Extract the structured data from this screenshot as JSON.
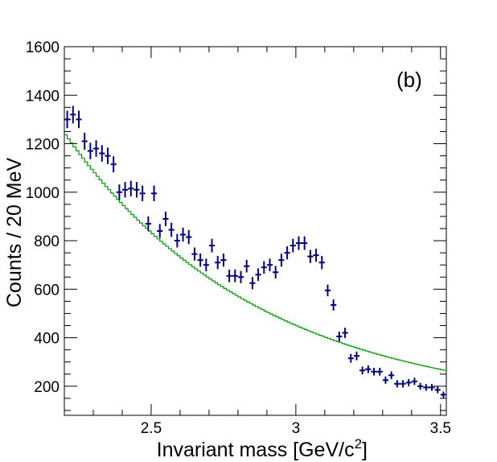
{
  "chart_data": {
    "type": "histogram-with-errorbars",
    "title": "",
    "panel_label": "(b)",
    "xlabel": "Invariant mass [GeV/c",
    "xlabel_sup": "2",
    "xlabel_close": "]",
    "ylabel": "Counts / 20 MeV",
    "xlim": [
      2.2,
      3.52
    ],
    "ylim": [
      80,
      1600
    ],
    "x_ticks": [
      {
        "value": 2.5,
        "label": "2.5"
      },
      {
        "value": 3.0,
        "label": "3"
      },
      {
        "value": 3.5,
        "label": "3.5"
      }
    ],
    "y_ticks": [
      {
        "value": 200,
        "label": "200"
      },
      {
        "value": 400,
        "label": "400"
      },
      {
        "value": 600,
        "label": "600"
      },
      {
        "value": 800,
        "label": "800"
      },
      {
        "value": 1000,
        "label": "1000"
      },
      {
        "value": 1200,
        "label": "1200"
      },
      {
        "value": 1400,
        "label": "1400"
      },
      {
        "value": 1600,
        "label": "1600"
      }
    ],
    "series": [
      {
        "name": "data",
        "style": "points-with-errors",
        "color": "#000080",
        "bin_width": 0.02,
        "x": [
          2.21,
          2.23,
          2.25,
          2.27,
          2.29,
          2.31,
          2.33,
          2.35,
          2.37,
          2.39,
          2.41,
          2.43,
          2.45,
          2.47,
          2.49,
          2.51,
          2.53,
          2.55,
          2.57,
          2.59,
          2.61,
          2.63,
          2.65,
          2.67,
          2.69,
          2.71,
          2.73,
          2.75,
          2.77,
          2.79,
          2.81,
          2.83,
          2.85,
          2.87,
          2.89,
          2.91,
          2.93,
          2.95,
          2.97,
          2.99,
          3.01,
          3.03,
          3.05,
          3.07,
          3.09,
          3.11,
          3.13,
          3.15,
          3.17,
          3.19,
          3.21,
          3.23,
          3.25,
          3.27,
          3.29,
          3.31,
          3.33,
          3.35,
          3.37,
          3.39,
          3.41,
          3.43,
          3.45,
          3.47,
          3.49,
          3.51
        ],
        "y": [
          1300,
          1320,
          1300,
          1210,
          1170,
          1180,
          1160,
          1150,
          1115,
          1000,
          1010,
          1015,
          1010,
          995,
          870,
          995,
          840,
          890,
          845,
          800,
          825,
          815,
          745,
          720,
          700,
          780,
          710,
          720,
          655,
          655,
          650,
          695,
          625,
          660,
          690,
          700,
          670,
          720,
          750,
          780,
          790,
          790,
          735,
          740,
          710,
          595,
          535,
          405,
          420,
          315,
          325,
          265,
          270,
          260,
          260,
          225,
          245,
          210,
          210,
          215,
          220,
          200,
          195,
          195,
          185,
          165
        ],
        "yerr": [
          36,
          36,
          36,
          35,
          34,
          34,
          34,
          34,
          33,
          32,
          32,
          32,
          32,
          32,
          30,
          32,
          29,
          30,
          29,
          28,
          29,
          29,
          27,
          27,
          26,
          28,
          27,
          27,
          26,
          26,
          25,
          26,
          25,
          26,
          26,
          26,
          26,
          27,
          27,
          28,
          28,
          28,
          27,
          27,
          27,
          24,
          23,
          20,
          21,
          18,
          18,
          16,
          16,
          16,
          16,
          15,
          16,
          15,
          15,
          15,
          15,
          14,
          14,
          14,
          14,
          13
        ]
      },
      {
        "name": "background",
        "style": "step",
        "color": "#009a00",
        "x_start": 2.2,
        "bin_width": 0.01,
        "model": {
          "form": "exponential-plus-constant",
          "amplitude": 1140,
          "decay": 1.49,
          "offset": 105
        }
      }
    ]
  }
}
